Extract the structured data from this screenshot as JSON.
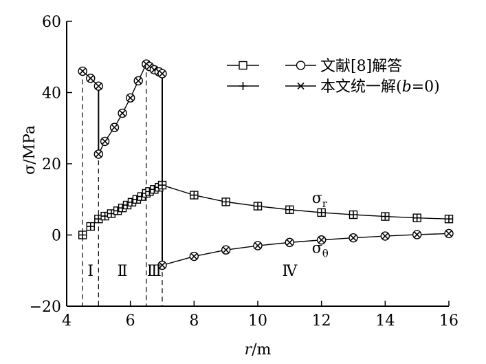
{
  "chart_data": {
    "type": "line",
    "xlabel": {
      "var": "r",
      "unit": "/m"
    },
    "ylabel": {
      "var": "σ",
      "unit": "/MPa"
    },
    "xlim": [
      4,
      16
    ],
    "ylim": [
      -20,
      60
    ],
    "xticks": [
      4,
      6,
      8,
      10,
      12,
      14,
      16
    ],
    "yticks": [
      -20,
      0,
      20,
      40,
      60
    ],
    "tick_labels_x": [
      "4",
      "6",
      "8",
      "10",
      "12",
      "14",
      "16"
    ],
    "tick_labels_y": [
      "−20",
      "0",
      "20",
      "40",
      "60"
    ],
    "grid": false,
    "legend": {
      "placement": "top-right",
      "rows": [
        {
          "left_marker": "square",
          "right_marker": "circle",
          "text": "文献[8]解答"
        },
        {
          "left_marker": "plus",
          "right_marker": "x",
          "text_before": "本文统一解(",
          "text_var": "b",
          "text_after": "=0)"
        }
      ]
    },
    "boundaries": [
      4.5,
      5.0,
      6.5,
      7.0
    ],
    "regions": [
      {
        "label": "Ⅰ",
        "x": 4.75
      },
      {
        "label": "Ⅱ",
        "x": 5.75
      },
      {
        "label": "Ⅲ",
        "x": 6.75
      },
      {
        "label": "Ⅳ",
        "x": 11.0
      }
    ],
    "series": [
      {
        "name": "σr",
        "label_main": "σ",
        "label_sub": "r",
        "label_at": [
          11.7,
          9.0
        ],
        "markers": [
          "square",
          "plus"
        ],
        "x": [
          4.5,
          4.75,
          5.0,
          5.2,
          5.4,
          5.6,
          5.75,
          5.9,
          6.05,
          6.2,
          6.35,
          6.5,
          6.6,
          6.75,
          6.9,
          7.0,
          8,
          9,
          10,
          11,
          12,
          13,
          14,
          15,
          16
        ],
        "y": [
          0.0,
          2.4,
          4.5,
          5.3,
          6.0,
          6.8,
          7.6,
          8.4,
          9.2,
          10.0,
          10.8,
          11.7,
          12.2,
          12.8,
          13.4,
          14.0,
          11.2,
          9.3,
          8.1,
          7.1,
          6.3,
          5.7,
          5.2,
          4.8,
          4.5
        ]
      },
      {
        "name": "σθ",
        "label_main": "σ",
        "label_sub": "θ",
        "label_at": [
          11.7,
          -5.0
        ],
        "markers": [
          "circle",
          "x"
        ],
        "segments": [
          {
            "x": [
              4.5,
              4.75,
              5.0
            ],
            "y": [
              46.0,
              44.0,
              41.8
            ]
          },
          {
            "x": [
              5.0,
              5.2,
              5.5,
              5.75,
              6.0,
              6.25,
              6.5,
              6.6,
              6.75,
              6.9,
              7.0
            ],
            "y": [
              22.7,
              26.3,
              30.2,
              34.2,
              38.5,
              43.3,
              48.0,
              47.3,
              46.4,
              45.8,
              45.3
            ]
          },
          {
            "x": [
              7.0,
              8,
              9,
              10,
              11,
              12,
              13,
              14,
              15,
              16
            ],
            "y": [
              -8.5,
              -6.0,
              -4.2,
              -3.0,
              -2.1,
              -1.4,
              -0.8,
              -0.3,
              0.1,
              0.4
            ]
          }
        ],
        "jumps": [
          {
            "x": 5.0,
            "from": 41.8,
            "to": 22.7
          },
          {
            "x": 7.0,
            "from": 45.3,
            "to": -8.5
          }
        ]
      }
    ]
  }
}
